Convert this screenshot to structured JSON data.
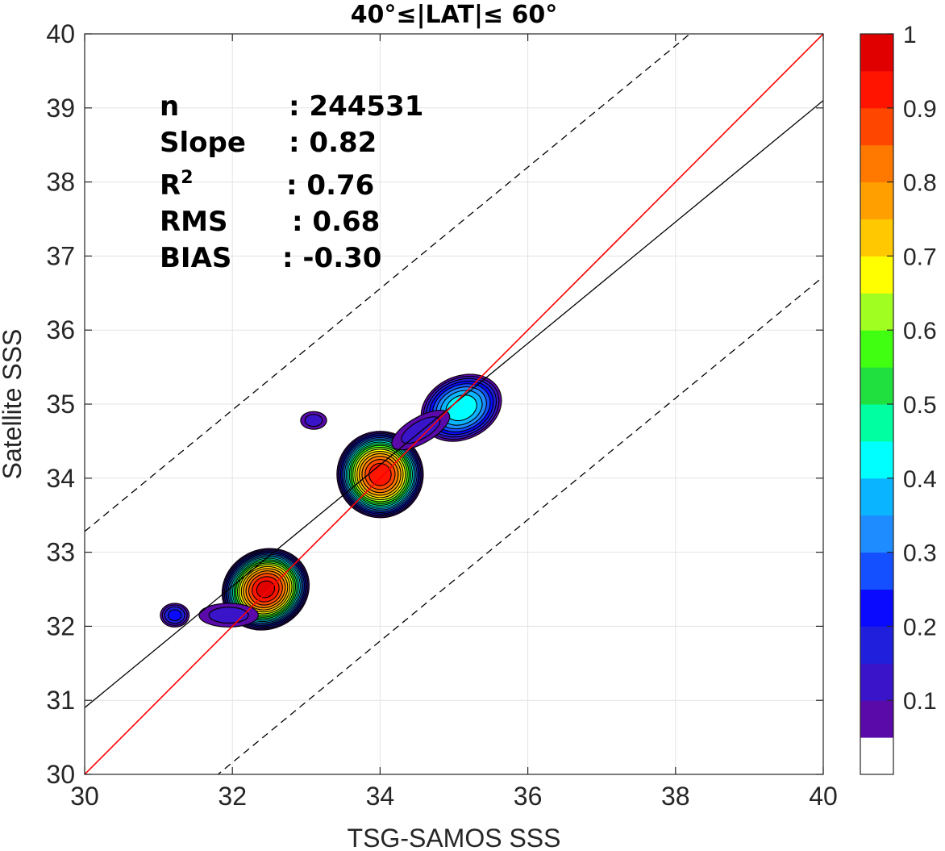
{
  "chart_data": {
    "type": "contour",
    "title": "40°≤|LAT|≤ 60°",
    "xlabel": "TSG-SAMOS SSS",
    "ylabel": "Satellite SSS",
    "xlim": [
      30,
      40
    ],
    "ylim": [
      30,
      40
    ],
    "xticks": [
      30,
      32,
      34,
      36,
      38,
      40
    ],
    "yticks": [
      30,
      31,
      32,
      33,
      34,
      35,
      36,
      37,
      38,
      39,
      40
    ],
    "grid": true,
    "stats": [
      {
        "label": "n",
        "value": ": 244531"
      },
      {
        "label": "Slope",
        "value": ": 0.82"
      },
      {
        "label": "R",
        "sup": "2",
        "value": ": 0.76"
      },
      {
        "label": "RMS",
        "value": ": 0.68"
      },
      {
        "label": "BIAS",
        "value": ": -0.30"
      }
    ],
    "lines": {
      "one_to_one": {
        "color": "#ff0000",
        "slope": 1,
        "intercept": 0
      },
      "regression": {
        "color": "#000000",
        "slope": 0.82,
        "intercept": 6.3
      },
      "offset_lines": {
        "color": "#000000",
        "style": "dashed",
        "offset": 2.38
      }
    },
    "colorbar": {
      "levels": [
        0,
        0.05,
        0.1,
        0.15,
        0.2,
        0.25,
        0.3,
        0.35,
        0.4,
        0.45,
        0.5,
        0.55,
        0.6,
        0.65,
        0.7,
        0.75,
        0.8,
        0.85,
        0.9,
        0.95,
        1
      ],
      "colors": [
        "#ffffff",
        "#5a0aa8",
        "#3a14c8",
        "#2020dc",
        "#0a0aff",
        "#1450ff",
        "#1e8cff",
        "#0ab4ff",
        "#00ffff",
        "#00ffa0",
        "#20e040",
        "#40ff10",
        "#a0ff20",
        "#ffff00",
        "#ffc800",
        "#ffa000",
        "#ff7800",
        "#ff4600",
        "#ff1400",
        "#e00000",
        "#8a0000"
      ],
      "ticks": [
        0.1,
        0.2,
        0.3,
        0.4,
        0.5,
        0.6,
        0.7,
        0.8,
        0.9,
        1
      ],
      "tick_labels": [
        "0.1",
        "0.2",
        "0.3",
        "0.4",
        "0.5",
        "0.6",
        "0.7",
        "0.8",
        "0.9",
        "1"
      ]
    },
    "clusters": [
      {
        "cx": 32.45,
        "cy": 32.5,
        "rx": 0.62,
        "ry": 0.55,
        "rot": 28,
        "peak": 0.95
      },
      {
        "cx": 34.0,
        "cy": 34.05,
        "rx": 0.6,
        "ry": 0.6,
        "rot": 40,
        "peak": 0.92
      },
      {
        "cx": 35.1,
        "cy": 34.95,
        "rx": 0.6,
        "ry": 0.45,
        "rot": 25,
        "peak": 0.42
      },
      {
        "cx": 34.55,
        "cy": 34.65,
        "rx": 0.55,
        "ry": 0.22,
        "rot": 30,
        "peak": 0.1
      },
      {
        "cx": 31.95,
        "cy": 32.15,
        "rx": 0.5,
        "ry": 0.2,
        "rot": 0,
        "peak": 0.1
      },
      {
        "cx": 31.22,
        "cy": 32.15,
        "rx": 0.22,
        "ry": 0.18,
        "rot": 0,
        "peak": 0.2
      },
      {
        "cx": 33.1,
        "cy": 34.78,
        "rx": 0.22,
        "ry": 0.15,
        "rot": 0,
        "peak": 0.1
      }
    ]
  }
}
